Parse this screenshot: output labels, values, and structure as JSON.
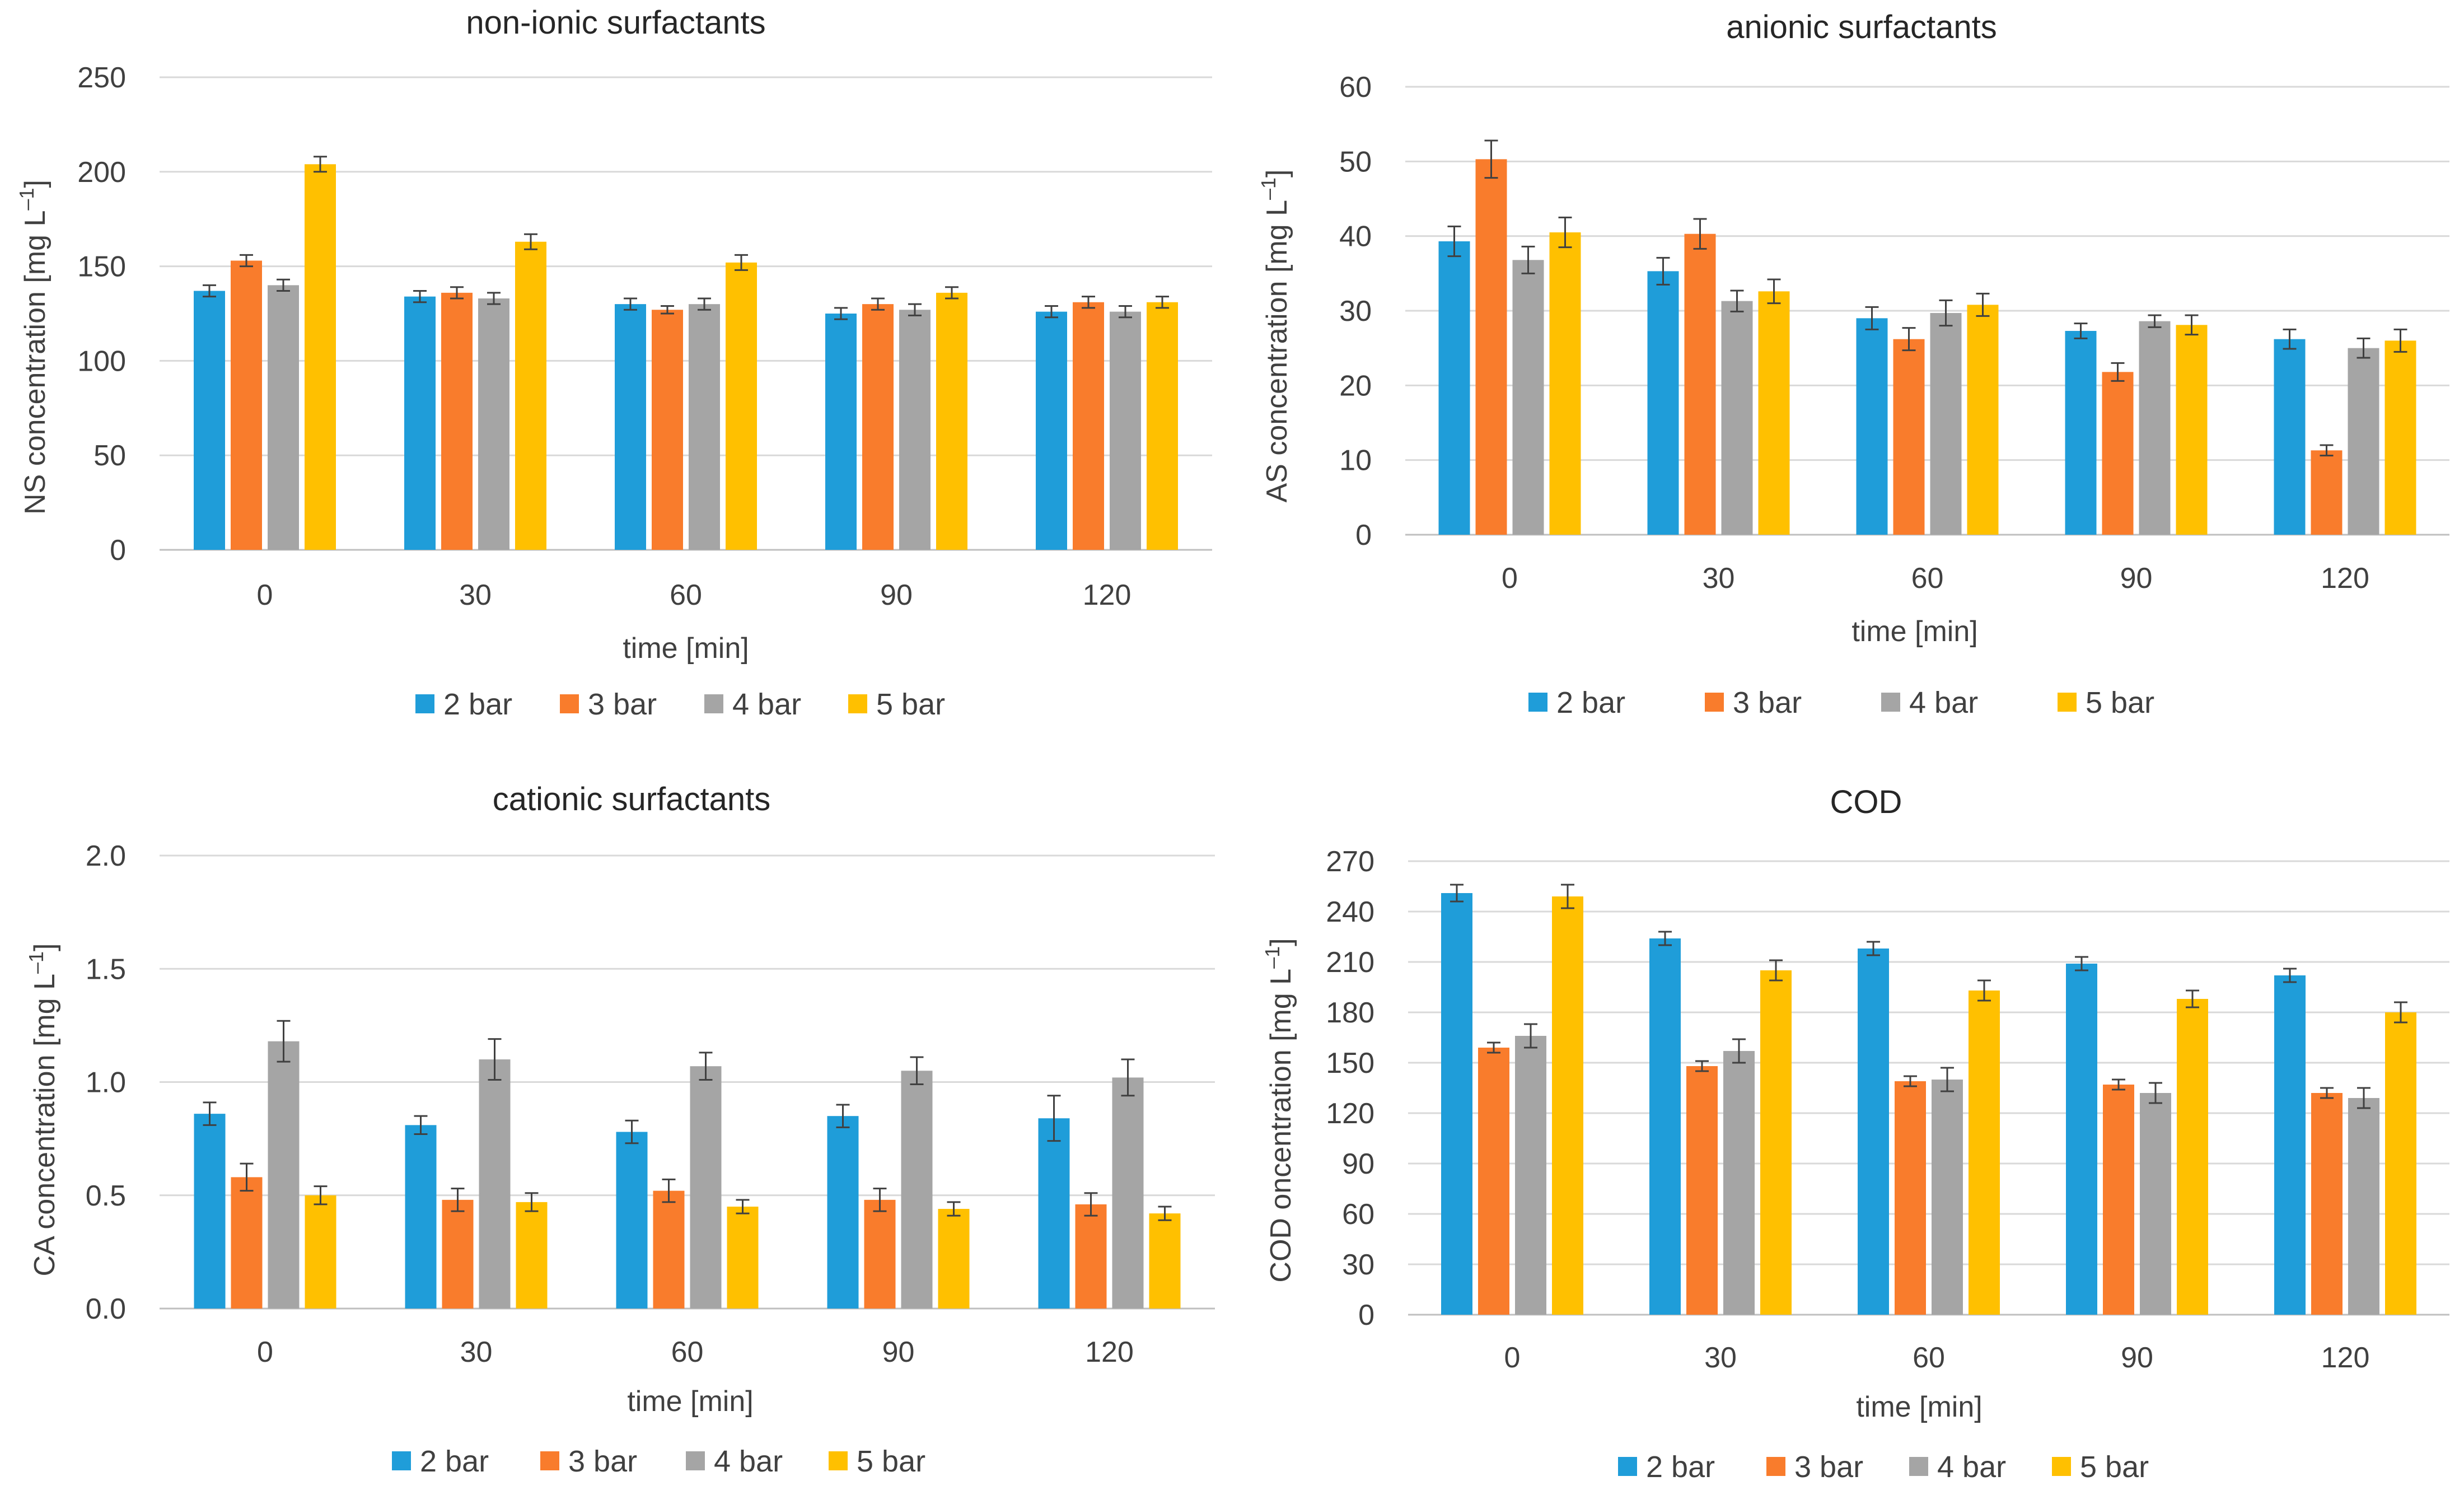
{
  "series_names": [
    "2 bar",
    "3 bar",
    "4 bar",
    "5 bar"
  ],
  "colors": [
    "#1f9dd9",
    "#f97c2c",
    "#a5a5a5",
    "#ffc000"
  ],
  "chart_data": [
    {
      "type": "bar",
      "title": "non-ionic surfactants",
      "xlabel": "time [min]",
      "ylabel": "NS concentration [mg L",
      "ylabel_sup": "–1",
      "ylabel_tail": "]",
      "categories": [
        "0",
        "30",
        "60",
        "90",
        "120"
      ],
      "ylim": [
        0,
        250
      ],
      "yticks": [
        0,
        50,
        100,
        150,
        200,
        250
      ],
      "ytick_labels": [
        "0",
        "50",
        "100",
        "150",
        "200",
        "250"
      ],
      "series": [
        {
          "name": "2 bar",
          "values": [
            137,
            134,
            130,
            125,
            126
          ],
          "errors": [
            3,
            3,
            3,
            3,
            3
          ]
        },
        {
          "name": "3 bar",
          "values": [
            153,
            136,
            127,
            130,
            131
          ],
          "errors": [
            3,
            3,
            2,
            3,
            3
          ]
        },
        {
          "name": "4 bar",
          "values": [
            140,
            133,
            130,
            127,
            126
          ],
          "errors": [
            3,
            3,
            3,
            3,
            3
          ]
        },
        {
          "name": "5 bar",
          "values": [
            204,
            163,
            152,
            136,
            131
          ],
          "errors": [
            4,
            4,
            4,
            3,
            3
          ]
        }
      ]
    },
    {
      "type": "bar",
      "title": "anionic surfactants",
      "xlabel": "time [min]",
      "ylabel": "AS concentration [mg L",
      "ylabel_sup": "–1",
      "ylabel_tail": "]",
      "categories": [
        "0",
        "30",
        "60",
        "90",
        "120"
      ],
      "ylim": [
        0,
        60
      ],
      "yticks": [
        0,
        10,
        20,
        30,
        40,
        50,
        60
      ],
      "ytick_labels": [
        "0",
        "10",
        "20",
        "30",
        "40",
        "50",
        "60"
      ],
      "series": [
        {
          "name": "2 bar",
          "values": [
            39.3,
            35.3,
            29.0,
            27.3,
            26.2
          ],
          "errors": [
            2.0,
            1.8,
            1.5,
            1.0,
            1.3
          ]
        },
        {
          "name": "3 bar",
          "values": [
            50.3,
            40.3,
            26.2,
            21.8,
            11.3
          ],
          "errors": [
            2.5,
            2.0,
            1.5,
            1.2,
            0.7
          ]
        },
        {
          "name": "4 bar",
          "values": [
            36.8,
            31.3,
            29.7,
            28.6,
            25.0
          ],
          "errors": [
            1.8,
            1.4,
            1.7,
            0.8,
            1.3
          ]
        },
        {
          "name": "5 bar",
          "values": [
            40.5,
            32.6,
            30.8,
            28.1,
            26.0
          ],
          "errors": [
            2.0,
            1.6,
            1.5,
            1.3,
            1.5
          ]
        }
      ]
    },
    {
      "type": "bar",
      "title": "cationic surfactants",
      "xlabel": "time [min]",
      "ylabel": "CA concentration [mg L",
      "ylabel_sup": "–1",
      "ylabel_tail": "]",
      "categories": [
        "0",
        "30",
        "60",
        "90",
        "120"
      ],
      "ylim": [
        0,
        2.0
      ],
      "yticks": [
        0,
        0.5,
        1.0,
        1.5,
        2.0
      ],
      "ytick_labels": [
        "0.0",
        "0.5",
        "1.0",
        "1.5",
        "2.0"
      ],
      "series": [
        {
          "name": "2 bar",
          "values": [
            0.86,
            0.81,
            0.78,
            0.85,
            0.84
          ],
          "errors": [
            0.05,
            0.04,
            0.05,
            0.05,
            0.1
          ]
        },
        {
          "name": "3 bar",
          "values": [
            0.58,
            0.48,
            0.52,
            0.48,
            0.46
          ],
          "errors": [
            0.06,
            0.05,
            0.05,
            0.05,
            0.05
          ]
        },
        {
          "name": "4 bar",
          "values": [
            1.18,
            1.1,
            1.07,
            1.05,
            1.02
          ],
          "errors": [
            0.09,
            0.09,
            0.06,
            0.06,
            0.08
          ]
        },
        {
          "name": "5 bar",
          "values": [
            0.5,
            0.47,
            0.45,
            0.44,
            0.42
          ],
          "errors": [
            0.04,
            0.04,
            0.03,
            0.03,
            0.03
          ]
        }
      ]
    },
    {
      "type": "bar",
      "title": "COD",
      "xlabel": "time [min]",
      "ylabel": "COD  oncentration [mg L",
      "ylabel_sup": "–1",
      "ylabel_tail": "]",
      "categories": [
        "0",
        "30",
        "60",
        "90",
        "120"
      ],
      "ylim": [
        0,
        270
      ],
      "yticks": [
        0,
        30,
        60,
        90,
        120,
        150,
        180,
        210,
        240,
        270
      ],
      "ytick_labels": [
        "0",
        "30",
        "60",
        "90",
        "120",
        "150",
        "180",
        "210",
        "240",
        "270"
      ],
      "series": [
        {
          "name": "2 bar",
          "values": [
            251,
            224,
            218,
            209,
            202
          ],
          "errors": [
            5,
            4,
            4,
            4,
            4
          ]
        },
        {
          "name": "3 bar",
          "values": [
            159,
            148,
            139,
            137,
            132
          ],
          "errors": [
            3,
            3,
            3,
            3,
            3
          ]
        },
        {
          "name": "4 bar",
          "values": [
            166,
            157,
            140,
            132,
            129
          ],
          "errors": [
            7,
            7,
            7,
            6,
            6
          ]
        },
        {
          "name": "5 bar",
          "values": [
            249,
            205,
            193,
            188,
            180
          ],
          "errors": [
            7,
            6,
            6,
            5,
            6
          ]
        }
      ]
    }
  ]
}
